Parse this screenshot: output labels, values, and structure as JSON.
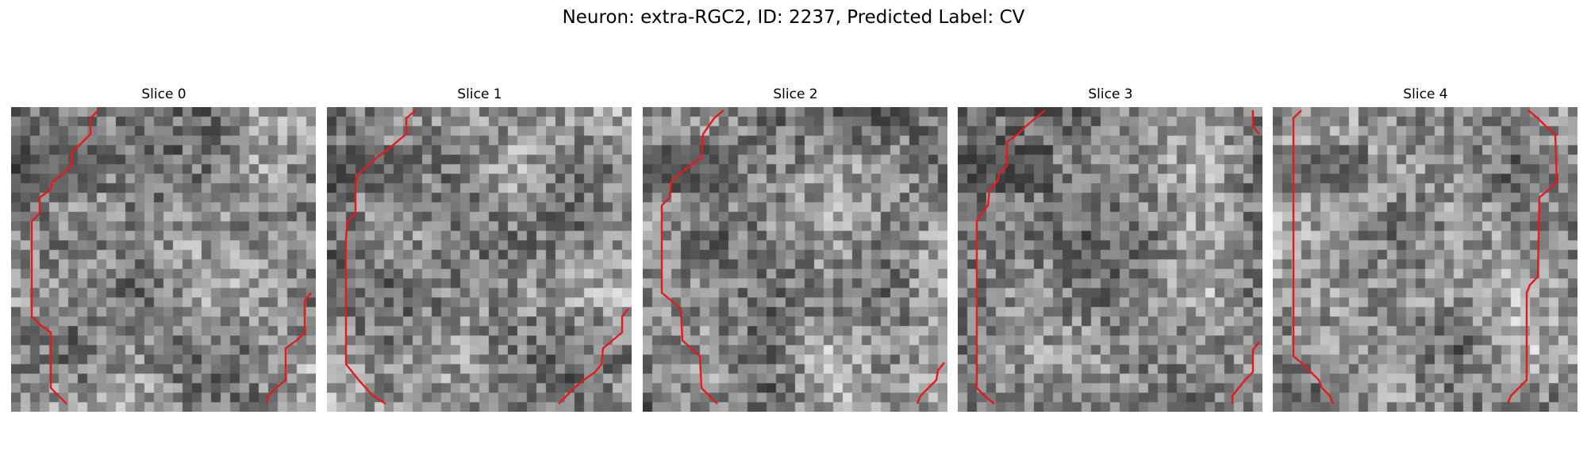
{
  "figure": {
    "title": "Neuron: extra-RGC2, ID: 2237, Predicted Label: CV"
  },
  "colors": {
    "contour": "#e41a1c",
    "background": "#ffffff"
  },
  "panels": [
    {
      "title": "Slice 0",
      "seed": 11
    },
    {
      "title": "Slice 1",
      "seed": 23
    },
    {
      "title": "Slice 2",
      "seed": 37
    },
    {
      "title": "Slice 3",
      "seed": 53
    },
    {
      "title": "Slice 4",
      "seed": 71
    }
  ]
}
